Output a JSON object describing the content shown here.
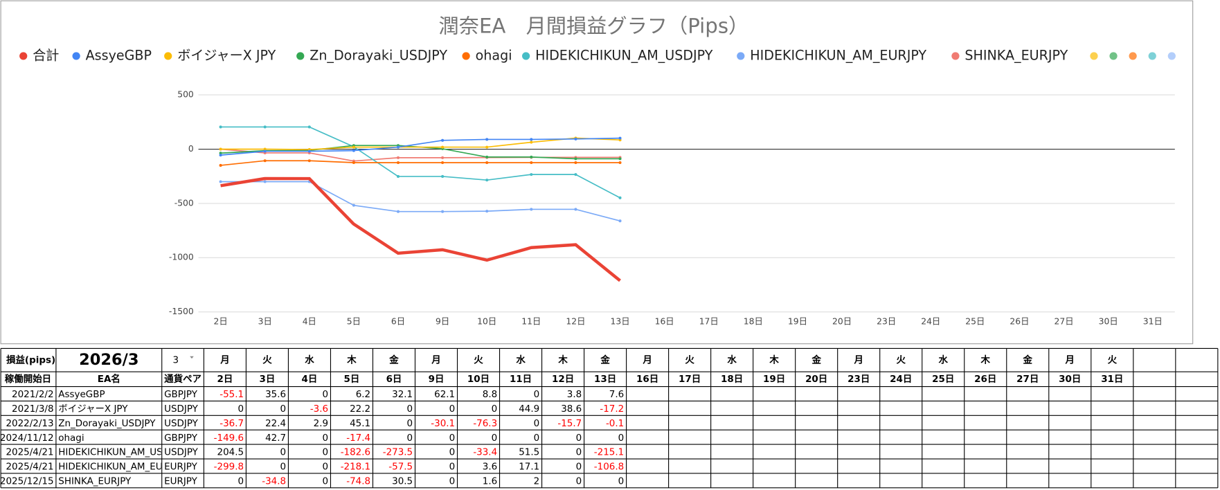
{
  "chart_data": {
    "type": "line",
    "title": "潤奈EA　月間損益グラフ（Pips）",
    "categories": [
      "2日",
      "3日",
      "4日",
      "5日",
      "6日",
      "9日",
      "10日",
      "11日",
      "12日",
      "13日",
      "16日",
      "17日",
      "18日",
      "19日",
      "20日",
      "23日",
      "24日",
      "25日",
      "26日",
      "27日",
      "30日",
      "31日"
    ],
    "series": [
      {
        "name": "合計",
        "color": "#ea4335",
        "values": [
          -336.7,
          -270.8,
          -271.5,
          -690.9,
          -959.3,
          -927.3,
          -1023,
          -907.5,
          -880.8,
          -1212.4,
          null,
          null,
          null,
          null,
          null,
          null,
          null,
          null,
          null,
          null,
          null,
          null
        ]
      },
      {
        "name": "AssyeGBP",
        "color": "#4285f4",
        "values": [
          -55.1,
          -19.5,
          -19.5,
          -13.3,
          18.8,
          80.9,
          89.7,
          89.7,
          93.5,
          101.1,
          null,
          null,
          null,
          null,
          null,
          null,
          null,
          null,
          null,
          null,
          null,
          null
        ]
      },
      {
        "name": "ボイジャーX JPY",
        "color": "#fbbc04",
        "values": [
          0,
          0,
          -3.6,
          18.6,
          18.6,
          18.6,
          18.6,
          63.5,
          102.1,
          84.9,
          null,
          null,
          null,
          null,
          null,
          null,
          null,
          null,
          null,
          null,
          null,
          null
        ]
      },
      {
        "name": "Zn_Dorayaki_USDJPY",
        "color": "#34a853",
        "values": [
          -36.7,
          -14.3,
          -11.4,
          33.7,
          33.7,
          3.6,
          -72.7,
          -72.7,
          -88.4,
          -88.5,
          null,
          null,
          null,
          null,
          null,
          null,
          null,
          null,
          null,
          null,
          null,
          null
        ]
      },
      {
        "name": "ohagi",
        "color": "#ff6d01",
        "values": [
          -149.6,
          -106.9,
          -106.9,
          -124.3,
          -124.3,
          -124.3,
          -124.3,
          -124.3,
          -124.3,
          -124.3,
          null,
          null,
          null,
          null,
          null,
          null,
          null,
          null,
          null,
          null,
          null,
          null
        ]
      },
      {
        "name": "HIDEKICHIKUN_AM_USDJPY",
        "color": "#46bdc6",
        "values": [
          204.5,
          204.5,
          204.5,
          21.9,
          -251.6,
          -251.6,
          -285,
          -233.5,
          -233.5,
          -448.6,
          null,
          null,
          null,
          null,
          null,
          null,
          null,
          null,
          null,
          null,
          null,
          null
        ]
      },
      {
        "name": "HIDEKICHIKUN_AM_EURJPY",
        "color": "#7baaf7",
        "values": [
          -299.8,
          -299.8,
          -299.8,
          -517.9,
          -575.4,
          -575.4,
          -571.8,
          -554.7,
          -554.7,
          -661.5,
          null,
          null,
          null,
          null,
          null,
          null,
          null,
          null,
          null,
          null,
          null,
          null
        ]
      },
      {
        "name": "SHINKA_EURJPY",
        "color": "#f07b72",
        "values": [
          0,
          -34.8,
          -34.8,
          -109.6,
          -79.1,
          -79.1,
          -77.5,
          -75.5,
          -75.5,
          -75.5,
          null,
          null,
          null,
          null,
          null,
          null,
          null,
          null,
          null,
          null,
          null,
          null
        ]
      }
    ],
    "ylim": [
      -1500,
      500
    ],
    "yticks": [
      -1500,
      -1000,
      -500,
      0,
      500
    ],
    "grid": true,
    "legend": "top"
  },
  "table": {
    "header": [
      "損益(pips)",
      "2026/3",
      "3"
    ],
    "weekdays": [
      "月",
      "火",
      "水",
      "木",
      "金",
      "月",
      "火",
      "水",
      "木",
      "金",
      "月",
      "火",
      "水",
      "木",
      "金",
      "月",
      "火",
      "水",
      "木",
      "金",
      "月",
      "火"
    ],
    "columns": [
      "稼働開始日",
      "EA名",
      "通貨ペア"
    ],
    "days": [
      "2日",
      "3日",
      "4日",
      "5日",
      "6日",
      "9日",
      "10日",
      "11日",
      "12日",
      "13日",
      "16日",
      "17日",
      "18日",
      "19日",
      "20日",
      "23日",
      "24日",
      "25日",
      "26日",
      "27日",
      "30日",
      "31日"
    ],
    "rows": [
      [
        "2021/2/2",
        "AssyeGBP",
        "GBPJPY",
        [
          -55.1,
          35.6,
          0,
          6.2,
          32.1,
          62.1,
          8.8,
          0,
          3.8,
          7.6
        ]
      ],
      [
        "2021/3/8",
        "ボイジャーX JPY",
        "USDJPY",
        [
          0,
          0,
          -3.6,
          22.2,
          0,
          0,
          0,
          44.9,
          38.6,
          -17.2
        ]
      ],
      [
        "2022/2/13",
        "Zn_Dorayaki_USDJPY",
        "USDJPY",
        [
          -36.7,
          22.4,
          2.9,
          45.1,
          0,
          -30.1,
          -76.3,
          0,
          -15.7,
          -0.1
        ]
      ],
      [
        "2024/11/12",
        "ohagi",
        "GBPJPY",
        [
          -149.6,
          42.7,
          0,
          -17.4,
          0,
          0,
          0,
          0,
          0,
          0
        ]
      ],
      [
        "2025/4/21",
        "HIDEKICHIKUN_AM_USDJPY",
        "USDJPY",
        [
          204.5,
          0,
          0,
          -182.6,
          -273.5,
          0,
          -33.4,
          51.5,
          0,
          -215.1
        ]
      ],
      [
        "2025/4/21",
        "HIDEKICHIKUN_AM_EURJPY",
        "EURJPY",
        [
          -299.8,
          0,
          0,
          -218.1,
          -57.5,
          0,
          3.6,
          17.1,
          0,
          -106.8
        ]
      ],
      [
        "2025/12/15",
        "SHINKA_EURJPY",
        "EURJPY",
        [
          0,
          -34.8,
          0,
          -74.8,
          30.5,
          0,
          1.6,
          2,
          0,
          0
        ]
      ]
    ]
  }
}
